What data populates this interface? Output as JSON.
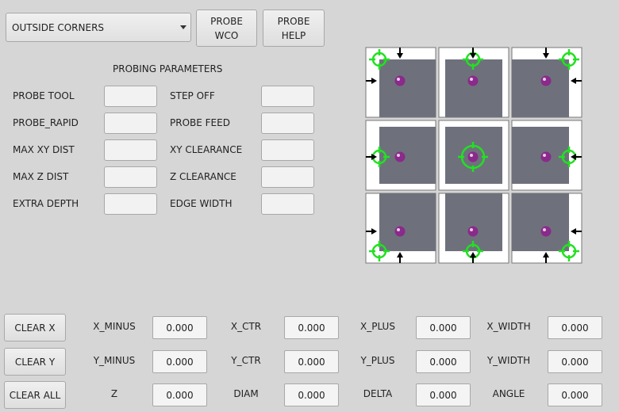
{
  "header": {
    "probe_mode": "OUTSIDE CORNERS",
    "probe_wco_label": "PROBE\nWCO",
    "probe_help_label": "PROBE\nHELP"
  },
  "params": {
    "title": "PROBING PARAMETERS",
    "left": [
      {
        "label": "PROBE TOOL",
        "value": ""
      },
      {
        "label": "PROBE_RAPID",
        "value": ""
      },
      {
        "label": "MAX XY DIST",
        "value": ""
      },
      {
        "label": "MAX Z DIST",
        "value": ""
      },
      {
        "label": "EXTRA DEPTH",
        "value": ""
      }
    ],
    "right": [
      {
        "label": "STEP OFF",
        "value": ""
      },
      {
        "label": "PROBE FEED",
        "value": ""
      },
      {
        "label": "XY CLEARANCE",
        "value": ""
      },
      {
        "label": "Z CLEARANCE",
        "value": ""
      },
      {
        "label": "EDGE WIDTH",
        "value": ""
      }
    ]
  },
  "probe_grid": {
    "selected": "center",
    "colors": {
      "target": "#22e022",
      "stock": "#6e717c",
      "ball": "#8a2a8a"
    },
    "cells": [
      "top-left",
      "top",
      "top-right",
      "left",
      "center",
      "right",
      "bottom-left",
      "bottom",
      "bottom-right"
    ]
  },
  "results": {
    "buttons": [
      "CLEAR X",
      "CLEAR Y",
      "CLEAR ALL"
    ],
    "rows": [
      [
        {
          "label": "X_MINUS",
          "value": "0.000"
        },
        {
          "label": "X_CTR",
          "value": "0.000"
        },
        {
          "label": "X_PLUS",
          "value": "0.000"
        },
        {
          "label": "X_WIDTH",
          "value": "0.000"
        }
      ],
      [
        {
          "label": "Y_MINUS",
          "value": "0.000"
        },
        {
          "label": "Y_CTR",
          "value": "0.000"
        },
        {
          "label": "Y_PLUS",
          "value": "0.000"
        },
        {
          "label": "Y_WIDTH",
          "value": "0.000"
        }
      ],
      [
        {
          "label": "Z",
          "value": "0.000"
        },
        {
          "label": "DIAM",
          "value": "0.000"
        },
        {
          "label": "DELTA",
          "value": "0.000"
        },
        {
          "label": "ANGLE",
          "value": "0.000"
        }
      ]
    ]
  }
}
